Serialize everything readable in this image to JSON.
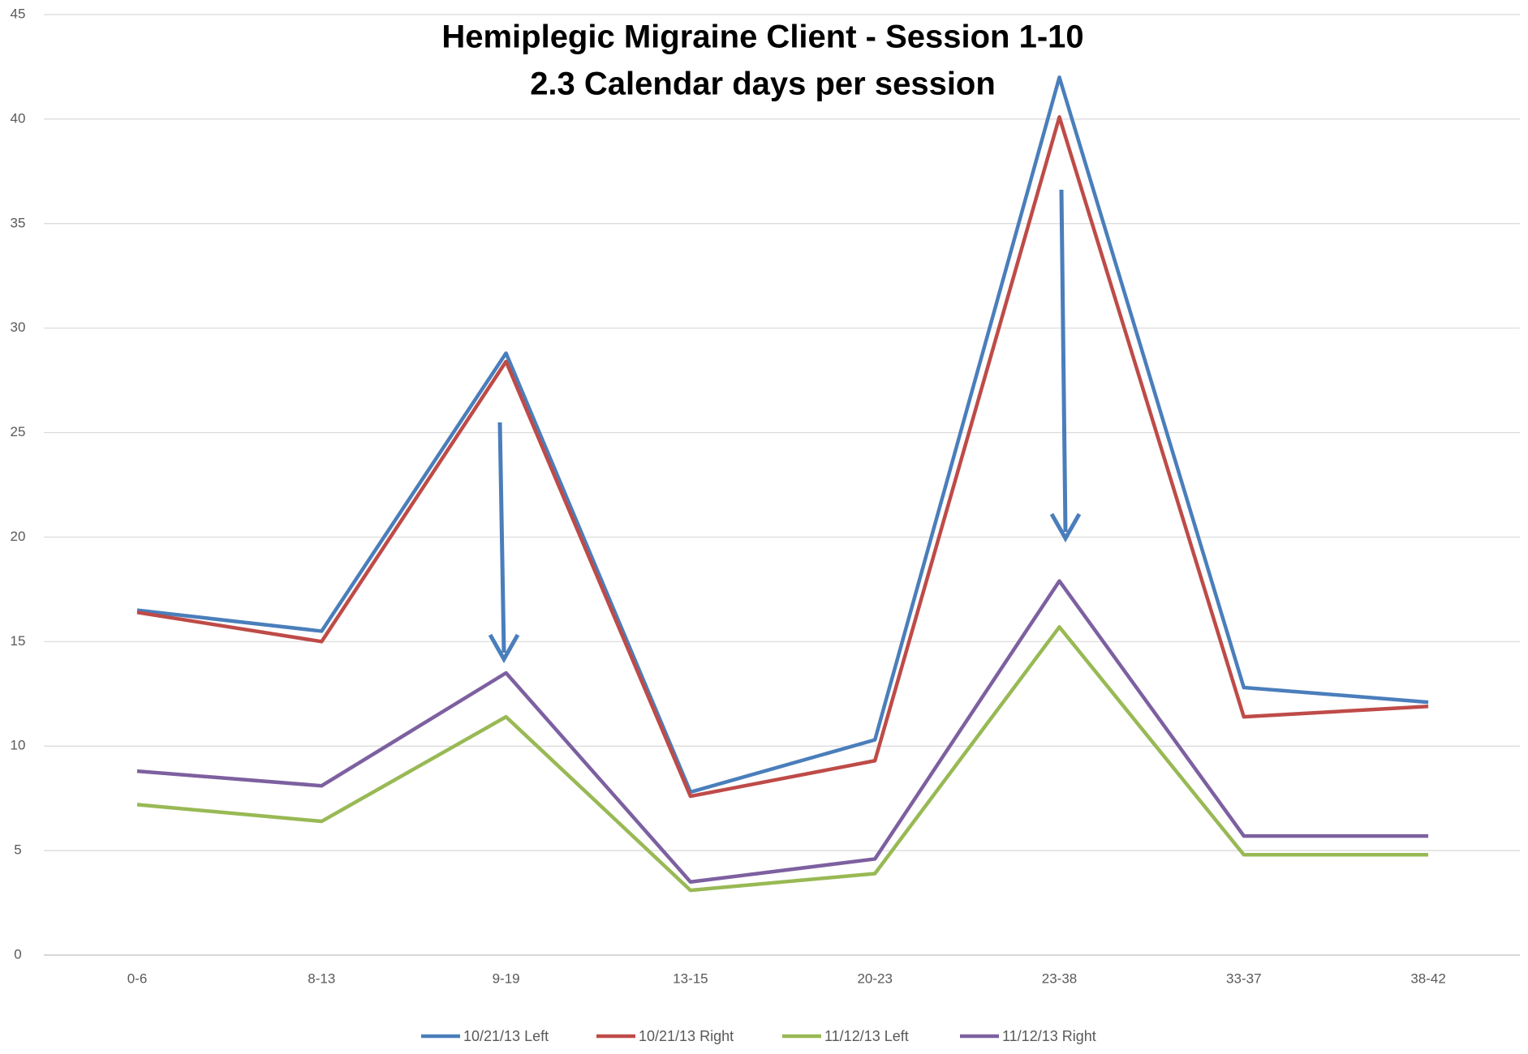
{
  "chart_data": {
    "type": "line",
    "title": "Hemiplegic Migraine Client - Session 1-10",
    "subtitle": "2.3 Calendar days per session",
    "categories": [
      "0-6",
      "8-13",
      "9-19",
      "13-15",
      "20-23",
      "23-38",
      "33-37",
      "38-42"
    ],
    "series": [
      {
        "name": "10/21/13 Left",
        "color": "#4a7ebb",
        "values": [
          16.5,
          15.5,
          28.8,
          7.8,
          10.3,
          42,
          12.8,
          12.1
        ]
      },
      {
        "name": "10/21/13 Right",
        "color": "#be4b48",
        "values": [
          16.4,
          15,
          28.4,
          7.6,
          9.3,
          40.1,
          11.4,
          11.9
        ]
      },
      {
        "name": "11/12/13 Left",
        "color": "#98b954",
        "values": [
          7.2,
          6.4,
          11.4,
          3.1,
          3.9,
          15.7,
          4.8,
          4.8
        ]
      },
      {
        "name": "11/12/13 Right",
        "color": "#7d60a0",
        "values": [
          8.8,
          8.1,
          13.5,
          3.5,
          4.6,
          17.9,
          5.7,
          5.7
        ]
      }
    ],
    "ylim": [
      0,
      45
    ],
    "yticks": [
      0,
      5,
      10,
      15,
      20,
      25,
      30,
      35,
      40,
      45
    ],
    "grid": true,
    "legend": "bottom"
  }
}
